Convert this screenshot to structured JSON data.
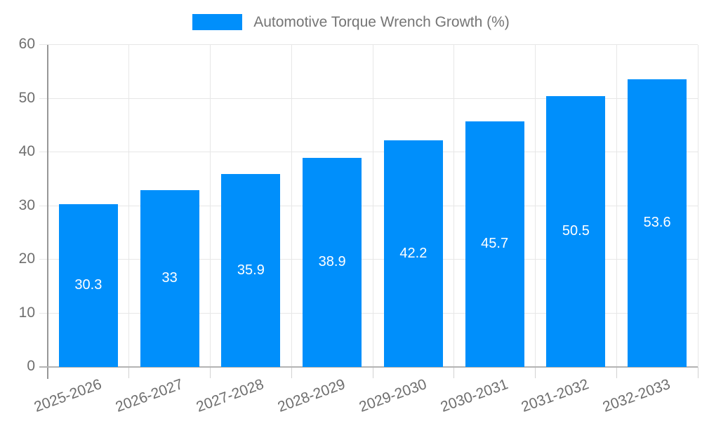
{
  "legend": {
    "label": "Automotive Torque Wrench Growth (%)"
  },
  "chart_data": {
    "type": "bar",
    "title": "Automotive Torque Wrench Growth (%)",
    "categories": [
      "2025-2026",
      "2026-2027",
      "2027-2028",
      "2028-2029",
      "2029-2030",
      "2030-2031",
      "2031-2032",
      "2032-2033"
    ],
    "values": [
      30.3,
      33,
      35.9,
      38.9,
      42.2,
      45.7,
      50.5,
      53.6
    ],
    "value_labels": [
      "30.3",
      "33",
      "35.9",
      "38.9",
      "42.2",
      "45.7",
      "50.5",
      "53.6"
    ],
    "xlabel": "",
    "ylabel": "",
    "ylim": [
      0,
      60
    ],
    "yticks": [
      0,
      10,
      20,
      30,
      40,
      50,
      60
    ],
    "grid": true,
    "legend_position": "top",
    "colors": {
      "bar": "#008FFB",
      "grid": "#e7e7e7",
      "y_axis_line": "#979797",
      "x_axis_line": "#b3b3b3",
      "tick_text": "#6e6e6e",
      "legend_text": "#757575",
      "value_label_text": "#ffffff"
    }
  }
}
